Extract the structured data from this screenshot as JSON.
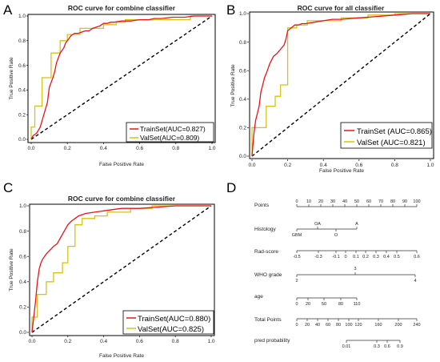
{
  "panels": [
    {
      "letter": "A",
      "title": "ROC curve for combine classifier",
      "xlabel": "False Positive Rate",
      "ylabel": "True Positive Rate",
      "xticks": [
        "0.0",
        "0.2",
        "0.4",
        "0.6",
        "0.8",
        "1.0"
      ],
      "yticks": [
        "0.0",
        "0.2",
        "0.4",
        "0.6",
        "0.8",
        "1.0"
      ],
      "legend": [
        "TrainSet(AUC=0.827)",
        "ValSet(AUC=0.809)"
      ]
    },
    {
      "letter": "B",
      "title": "ROC curve for all classifier",
      "xlabel": "False Positive Rate",
      "ylabel": "True Positive Rate",
      "xticks": [
        "0.0",
        "0.2",
        "0.4",
        "0.6",
        "0.8",
        "1.0"
      ],
      "yticks": [
        "0.0",
        "0.2",
        "0.4",
        "0.6",
        "0.8",
        "1.0"
      ],
      "legend": [
        "TrainSet (AUC=0.865)",
        "ValSet (AUC=0.821)"
      ]
    },
    {
      "letter": "C",
      "title": "ROC curve for combine classifier",
      "xlabel": "False Positive Rate",
      "ylabel": "True Positive Rate",
      "xticks": [
        "0.0",
        "0.2",
        "0.4",
        "0.6",
        "0.8",
        "1.0"
      ],
      "yticks": [
        "0.0",
        "0.2",
        "0.4",
        "0.6",
        "0.8",
        "1.0"
      ],
      "legend": [
        "TrainSet(AUC=0.880)",
        "ValSet(AUC=0.825)"
      ]
    }
  ],
  "nomogram": {
    "letter": "D",
    "rows": [
      {
        "label": "Points",
        "ticks": [
          "0",
          "10",
          "20",
          "30",
          "40",
          "50",
          "60",
          "70",
          "80",
          "90",
          "100"
        ]
      },
      {
        "label": "Histology",
        "top": [
          "OA",
          "A"
        ],
        "bottom": [
          "GBM",
          "O"
        ]
      },
      {
        "label": "Rad-score",
        "ticks": [
          "-0.5",
          "-0.3",
          "-0.1",
          "0",
          "0.1",
          "0.2",
          "0.3",
          "0.4",
          "0.5",
          "0.6"
        ]
      },
      {
        "label": "WHO grade",
        "top": [
          "3"
        ],
        "bottom": [
          "2",
          "4"
        ]
      },
      {
        "label": "age",
        "ticks": [
          "0",
          "20",
          "50",
          "80",
          "110"
        ]
      },
      {
        "label": "Total Points",
        "ticks": [
          "0",
          "20",
          "40",
          "60",
          "80",
          "100",
          "120",
          "160",
          "200",
          "240"
        ]
      },
      {
        "label": "pred probability",
        "ticks": [
          "0.01",
          "0.3",
          "0.6",
          "0.9"
        ]
      }
    ]
  },
  "colors": {
    "train": "#e8141b",
    "val": "#d4c219",
    "diagonal": "#000000"
  },
  "chart_data": [
    {
      "type": "line",
      "title": "ROC curve for combine classifier",
      "xlabel": "False Positive Rate",
      "ylabel": "True Positive Rate",
      "xlim": [
        0,
        1
      ],
      "ylim": [
        0,
        1
      ],
      "grid": false,
      "legend_placement": "bottom-right",
      "series": [
        {
          "name": "TrainSet(AUC=0.827)",
          "x": [
            0,
            0.01,
            0.03,
            0.05,
            0.07,
            0.09,
            0.1,
            0.12,
            0.13,
            0.14,
            0.15,
            0.16,
            0.17,
            0.18,
            0.19,
            0.2,
            0.21,
            0.22,
            0.24,
            0.26,
            0.28,
            0.3,
            0.32,
            0.34,
            0.36,
            0.38,
            0.4,
            0.42,
            0.44,
            0.46,
            0.5,
            0.55,
            0.6,
            0.65,
            0.68,
            0.72,
            0.78,
            0.85,
            0.9,
            1.0
          ],
          "y": [
            0,
            0.03,
            0.05,
            0.1,
            0.2,
            0.3,
            0.42,
            0.5,
            0.55,
            0.62,
            0.66,
            0.7,
            0.72,
            0.74,
            0.78,
            0.8,
            0.82,
            0.84,
            0.86,
            0.86,
            0.87,
            0.88,
            0.88,
            0.9,
            0.91,
            0.92,
            0.94,
            0.94,
            0.95,
            0.95,
            0.96,
            0.96,
            0.97,
            0.97,
            0.98,
            0.98,
            0.99,
            0.99,
            1.0,
            1.0
          ]
        },
        {
          "name": "ValSet(AUC=0.809)",
          "x": [
            0,
            0,
            0.02,
            0.02,
            0.06,
            0.06,
            0.11,
            0.11,
            0.16,
            0.16,
            0.2,
            0.2,
            0.27,
            0.27,
            0.4,
            0.4,
            0.47,
            0.47,
            0.52,
            0.52,
            0.88,
            0.88,
            1.0
          ],
          "y": [
            0,
            0.1,
            0.1,
            0.27,
            0.27,
            0.5,
            0.5,
            0.7,
            0.7,
            0.8,
            0.8,
            0.85,
            0.85,
            0.9,
            0.9,
            0.93,
            0.93,
            0.95,
            0.95,
            0.97,
            0.97,
            1.0,
            1.0
          ]
        }
      ]
    },
    {
      "type": "line",
      "title": "ROC curve for all classifier",
      "xlabel": "False Positive Rate",
      "ylabel": "True Positive Rate",
      "xlim": [
        0,
        1
      ],
      "ylim": [
        0,
        1
      ],
      "grid": false,
      "legend_placement": "bottom-right",
      "series": [
        {
          "name": "TrainSet (AUC=0.865)",
          "x": [
            0,
            0.01,
            0.02,
            0.03,
            0.04,
            0.05,
            0.06,
            0.07,
            0.08,
            0.1,
            0.12,
            0.14,
            0.16,
            0.18,
            0.19,
            0.2,
            0.22,
            0.24,
            0.26,
            0.28,
            0.3,
            0.35,
            0.4,
            0.45,
            0.5,
            0.6,
            0.7,
            0.8,
            0.9,
            1.0
          ],
          "y": [
            0,
            0.15,
            0.25,
            0.3,
            0.35,
            0.45,
            0.5,
            0.55,
            0.58,
            0.65,
            0.7,
            0.72,
            0.75,
            0.78,
            0.82,
            0.88,
            0.9,
            0.92,
            0.92,
            0.93,
            0.93,
            0.94,
            0.95,
            0.96,
            0.96,
            0.97,
            0.98,
            0.99,
            1.0,
            1.0
          ]
        },
        {
          "name": "ValSet (AUC=0.821)",
          "x": [
            0,
            0,
            0.08,
            0.08,
            0.13,
            0.13,
            0.16,
            0.16,
            0.2,
            0.2,
            0.25,
            0.25,
            0.31,
            0.31,
            0.5,
            0.5,
            0.65,
            0.65,
            0.8,
            0.8,
            1.0
          ],
          "y": [
            0,
            0.2,
            0.2,
            0.35,
            0.35,
            0.42,
            0.42,
            0.5,
            0.5,
            0.9,
            0.9,
            0.92,
            0.92,
            0.95,
            0.95,
            0.97,
            0.97,
            0.99,
            0.99,
            1.0,
            1.0
          ]
        }
      ]
    },
    {
      "type": "line",
      "title": "ROC curve for combine classifier",
      "xlabel": "False Positive Rate",
      "ylabel": "True Positive Rate",
      "xlim": [
        0,
        1
      ],
      "ylim": [
        0,
        1
      ],
      "grid": false,
      "legend_placement": "bottom-right",
      "series": [
        {
          "name": "TrainSet(AUC=0.880)",
          "x": [
            0,
            0.01,
            0.02,
            0.03,
            0.04,
            0.05,
            0.06,
            0.07,
            0.08,
            0.1,
            0.12,
            0.14,
            0.16,
            0.18,
            0.2,
            0.22,
            0.24,
            0.26,
            0.3,
            0.35,
            0.4,
            0.45,
            0.5,
            0.6,
            0.7,
            0.8,
            0.9,
            1.0
          ],
          "y": [
            0,
            0.12,
            0.25,
            0.4,
            0.5,
            0.55,
            0.58,
            0.6,
            0.62,
            0.65,
            0.68,
            0.7,
            0.75,
            0.8,
            0.85,
            0.88,
            0.9,
            0.92,
            0.94,
            0.95,
            0.96,
            0.97,
            0.98,
            0.98,
            0.99,
            1.0,
            1.0,
            1.0
          ]
        },
        {
          "name": "ValSet(AUC=0.825)",
          "x": [
            0,
            0,
            0.03,
            0.03,
            0.08,
            0.08,
            0.12,
            0.12,
            0.17,
            0.17,
            0.2,
            0.2,
            0.24,
            0.24,
            0.28,
            0.28,
            0.35,
            0.35,
            0.42,
            0.42,
            0.55,
            0.55,
            0.67,
            0.67,
            1.0
          ],
          "y": [
            0,
            0.12,
            0.12,
            0.3,
            0.3,
            0.4,
            0.4,
            0.47,
            0.47,
            0.55,
            0.55,
            0.68,
            0.68,
            0.85,
            0.85,
            0.9,
            0.9,
            0.92,
            0.92,
            0.95,
            0.95,
            0.98,
            0.98,
            1.0,
            1.0
          ]
        }
      ]
    }
  ]
}
